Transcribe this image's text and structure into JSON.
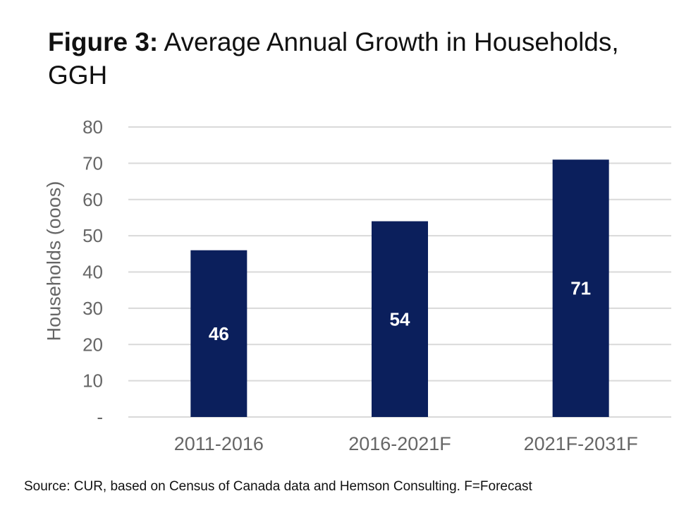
{
  "title": {
    "prefix": "Figure 3:",
    "text": "Average Annual Growth in Households, GGH"
  },
  "source_note": "Source: CUR, based on Census of Canada data and Hemson Consulting. F=Forecast",
  "colors": {
    "bar": "#0b1f5c",
    "grid": "#d9d9d9",
    "axis_text": "#666666",
    "label_text": "#ffffff"
  },
  "chart_data": {
    "type": "bar",
    "categories": [
      "2011-2016",
      "2016-2021F",
      "2021F-2031F"
    ],
    "values": [
      46,
      54,
      71
    ],
    "data_labels": [
      "46",
      "54",
      "71"
    ],
    "ylabel": "Households (ooos)",
    "xlabel": "",
    "ylim": [
      0,
      80
    ],
    "yticks": [
      0,
      10,
      20,
      30,
      40,
      50,
      60,
      70,
      80
    ],
    "ytick_labels": [
      "-",
      "10",
      "20",
      "30",
      "40",
      "50",
      "60",
      "70",
      "80"
    ],
    "grid": true,
    "legend": "none"
  }
}
